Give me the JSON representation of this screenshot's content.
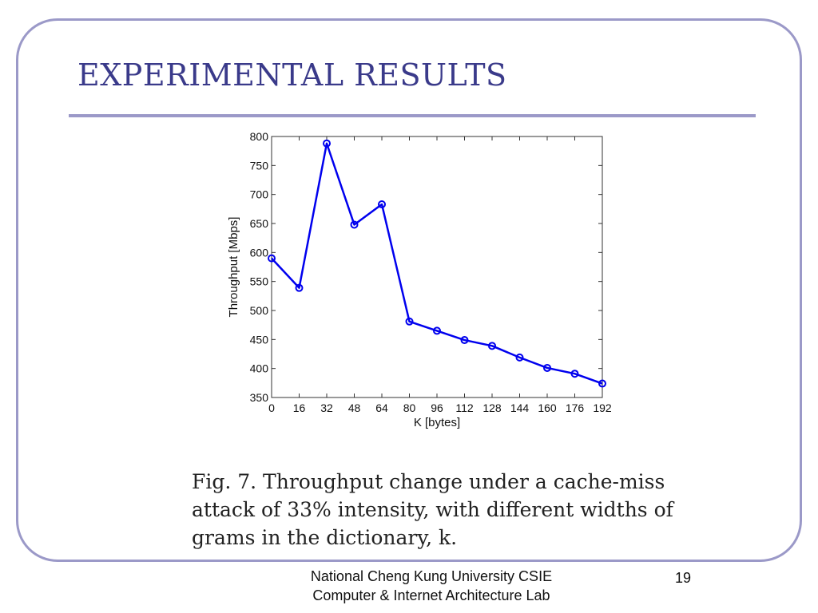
{
  "slide": {
    "title": "EXPERIMENTAL RESULTS",
    "caption_lines": [
      "Fig. 7.   Throughput change under a cache-miss",
      "attack of 33% intensity, with different widths of",
      "grams in the dictionary, k."
    ],
    "footer_line1": "National Cheng Kung University CSIE",
    "footer_line2": "Computer & Internet Architecture Lab",
    "page_number": "19"
  },
  "colors": {
    "frame": "#9b99c8",
    "title": "#3a3a8a",
    "series": "#0000ee"
  },
  "chart_data": {
    "type": "line",
    "xlabel": "K [bytes]",
    "ylabel": "Throughput [Mbps]",
    "x": [
      0,
      16,
      32,
      48,
      64,
      80,
      96,
      112,
      128,
      144,
      160,
      176,
      192
    ],
    "series": [
      {
        "values": [
          590,
          539,
          788,
          648,
          683,
          481,
          465,
          449,
          439,
          419,
          401,
          391,
          374
        ]
      }
    ],
    "xlim": [
      0,
      192
    ],
    "ylim": [
      350,
      800
    ],
    "xticks": [
      0,
      16,
      32,
      48,
      64,
      80,
      96,
      112,
      128,
      144,
      160,
      176,
      192
    ],
    "yticks": [
      350,
      400,
      450,
      500,
      550,
      600,
      650,
      700,
      750,
      800
    ],
    "marker": "circle",
    "grid": false
  }
}
